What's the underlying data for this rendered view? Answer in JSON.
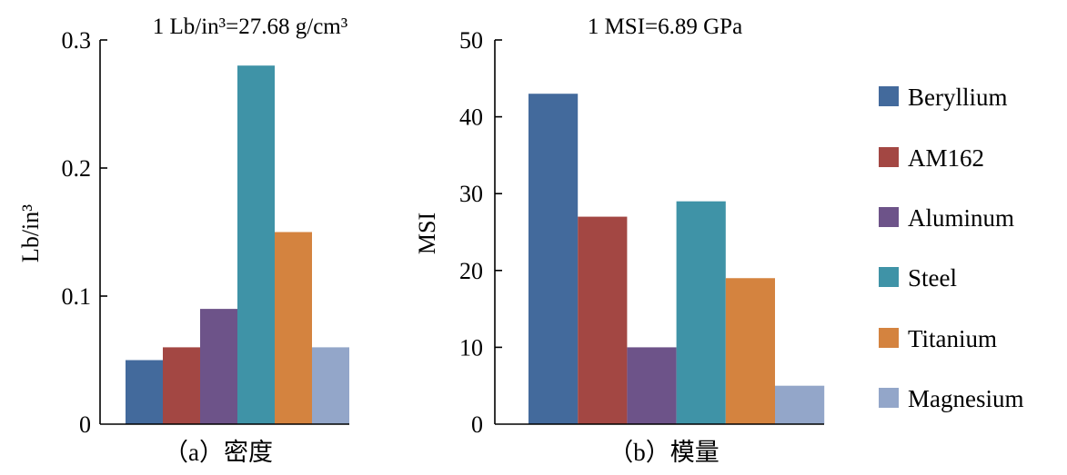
{
  "legend": {
    "position": "right",
    "items": [
      {
        "label": "Beryllium",
        "color": "#436a9c"
      },
      {
        "label": "AM162",
        "color": "#a34743"
      },
      {
        "label": "Aluminum",
        "color": "#6d5389"
      },
      {
        "label": "Steel",
        "color": "#3f93a7"
      },
      {
        "label": "Titanium",
        "color": "#d4833f"
      },
      {
        "label": "Magnesium",
        "color": "#93a6c9"
      }
    ]
  },
  "chart_data": [
    {
      "type": "bar",
      "note": "1 Lb/in³=27.68 g/cm³",
      "caption": "（a）密度",
      "ylabel": "Lb/in³",
      "ylim": [
        0,
        0.3
      ],
      "yticks": [
        "0",
        "0.1",
        "0.2",
        "0.3"
      ],
      "categories": [
        "Beryllium",
        "AM162",
        "Aluminum",
        "Steel",
        "Titanium",
        "Magnesium"
      ],
      "values": [
        0.05,
        0.06,
        0.09,
        0.28,
        0.15,
        0.06
      ]
    },
    {
      "type": "bar",
      "note": "1 MSI=6.89 GPa",
      "caption": "（b）模量",
      "ylabel": "MSI",
      "ylim": [
        0,
        50
      ],
      "yticks": [
        "0",
        "10",
        "20",
        "30",
        "40",
        "50"
      ],
      "categories": [
        "Beryllium",
        "AM162",
        "Aluminum",
        "Steel",
        "Titanium",
        "Magnesium"
      ],
      "values": [
        43,
        27,
        10,
        29,
        19,
        5
      ]
    }
  ]
}
